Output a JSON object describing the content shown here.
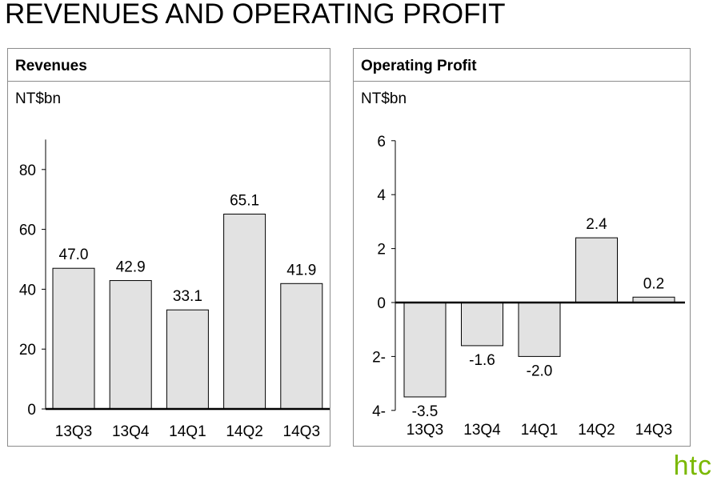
{
  "page": {
    "title": "REVENUES AND OPERATING PROFIT"
  },
  "logo": {
    "text": "htc",
    "color": "#7ab800"
  },
  "colors": {
    "bar_fill": "#e2e2e2",
    "bar_stroke": "#000000",
    "panel_border": "#8c8c8c"
  },
  "chart_data": [
    {
      "type": "bar",
      "title": "Revenues",
      "ylabel": "NT$bn",
      "categories": [
        "13Q3",
        "13Q4",
        "14Q1",
        "14Q2",
        "14Q3"
      ],
      "values": [
        47.0,
        42.9,
        33.1,
        65.1,
        41.9
      ],
      "value_labels": [
        "47.0",
        "42.9",
        "33.1",
        "65.1",
        "41.9"
      ],
      "ylim": [
        0,
        90
      ],
      "yticks": [
        0,
        20,
        40,
        60,
        80
      ],
      "ytick_labels": [
        "0",
        "20",
        "40",
        "60",
        "80"
      ],
      "grid": false,
      "legend": "none"
    },
    {
      "type": "bar",
      "title": "Operating Profit",
      "ylabel": "NT$bn",
      "categories": [
        "13Q3",
        "13Q4",
        "14Q1",
        "14Q2",
        "14Q3"
      ],
      "values": [
        -3.5,
        -1.6,
        -2.0,
        2.4,
        0.2
      ],
      "value_labels": [
        "-3.5",
        "-1.6",
        "-2.0",
        "2.4",
        "0.2"
      ],
      "ylim": [
        -4,
        6
      ],
      "yticks": [
        -4,
        -2,
        0,
        2,
        4,
        6
      ],
      "ytick_labels": [
        "4-",
        "2-",
        "0",
        "2",
        "4",
        "6"
      ],
      "grid": false,
      "legend": "none"
    }
  ]
}
